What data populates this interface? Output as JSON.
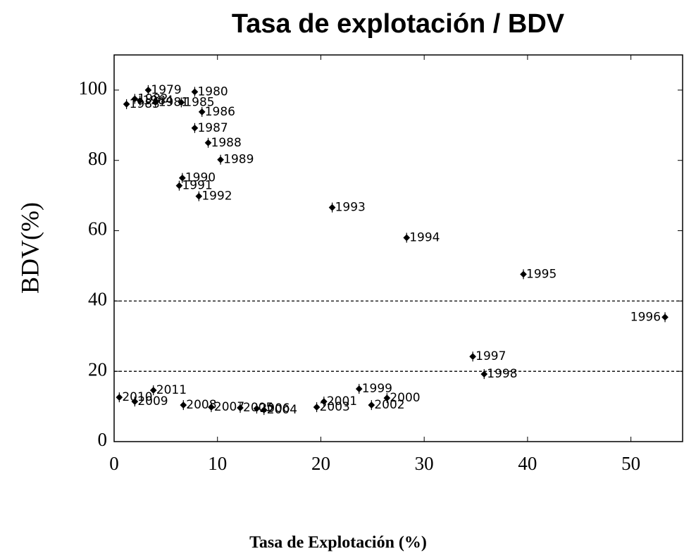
{
  "chart_data": {
    "type": "scatter",
    "title": "Tasa de explotación / BDV",
    "xlabel": "Tasa de Explotación (%)",
    "ylabel": "BDV(%)",
    "labels": [
      "1979",
      "1980",
      "1981",
      "1982",
      "1983",
      "1984",
      "1985",
      "1986",
      "1987",
      "1988",
      "1989",
      "1990",
      "1991",
      "1992",
      "1993",
      "1994",
      "1995",
      "1996",
      "1997",
      "1998",
      "1999",
      "2000",
      "2001",
      "2002",
      "2003",
      "2004",
      "2005",
      "2006",
      "2007",
      "2008",
      "2009",
      "2010",
      "2011"
    ],
    "x": [
      3.3,
      7.8,
      4.0,
      2.0,
      1.2,
      2.5,
      6.5,
      8.5,
      7.8,
      9.1,
      10.3,
      6.6,
      6.3,
      8.2,
      21.1,
      28.3,
      39.6,
      53.3,
      34.7,
      35.8,
      23.7,
      26.4,
      20.3,
      24.9,
      19.6,
      14.5,
      12.2,
      13.8,
      9.4,
      6.7,
      2.0,
      0.5,
      3.8
    ],
    "values": [
      100,
      99.5,
      96.5,
      97.5,
      96.0,
      97.0,
      96.5,
      93.8,
      89.2,
      85,
      80.2,
      75,
      72.8,
      69.8,
      66.6,
      58,
      47.6,
      35.4,
      24.2,
      19.2,
      15,
      12.4,
      11.4,
      10.4,
      9.8,
      9,
      9.6,
      9.4,
      9.8,
      10.4,
      11.4,
      12.6,
      14.6
    ],
    "color": "#000000",
    "xlim": [
      0,
      55
    ],
    "xticks": [
      0,
      10,
      20,
      30,
      40,
      50
    ],
    "ylim": [
      0,
      110
    ],
    "yticks": [
      0,
      20,
      40,
      60,
      80,
      100
    ],
    "hlines": [
      40,
      20
    ]
  }
}
